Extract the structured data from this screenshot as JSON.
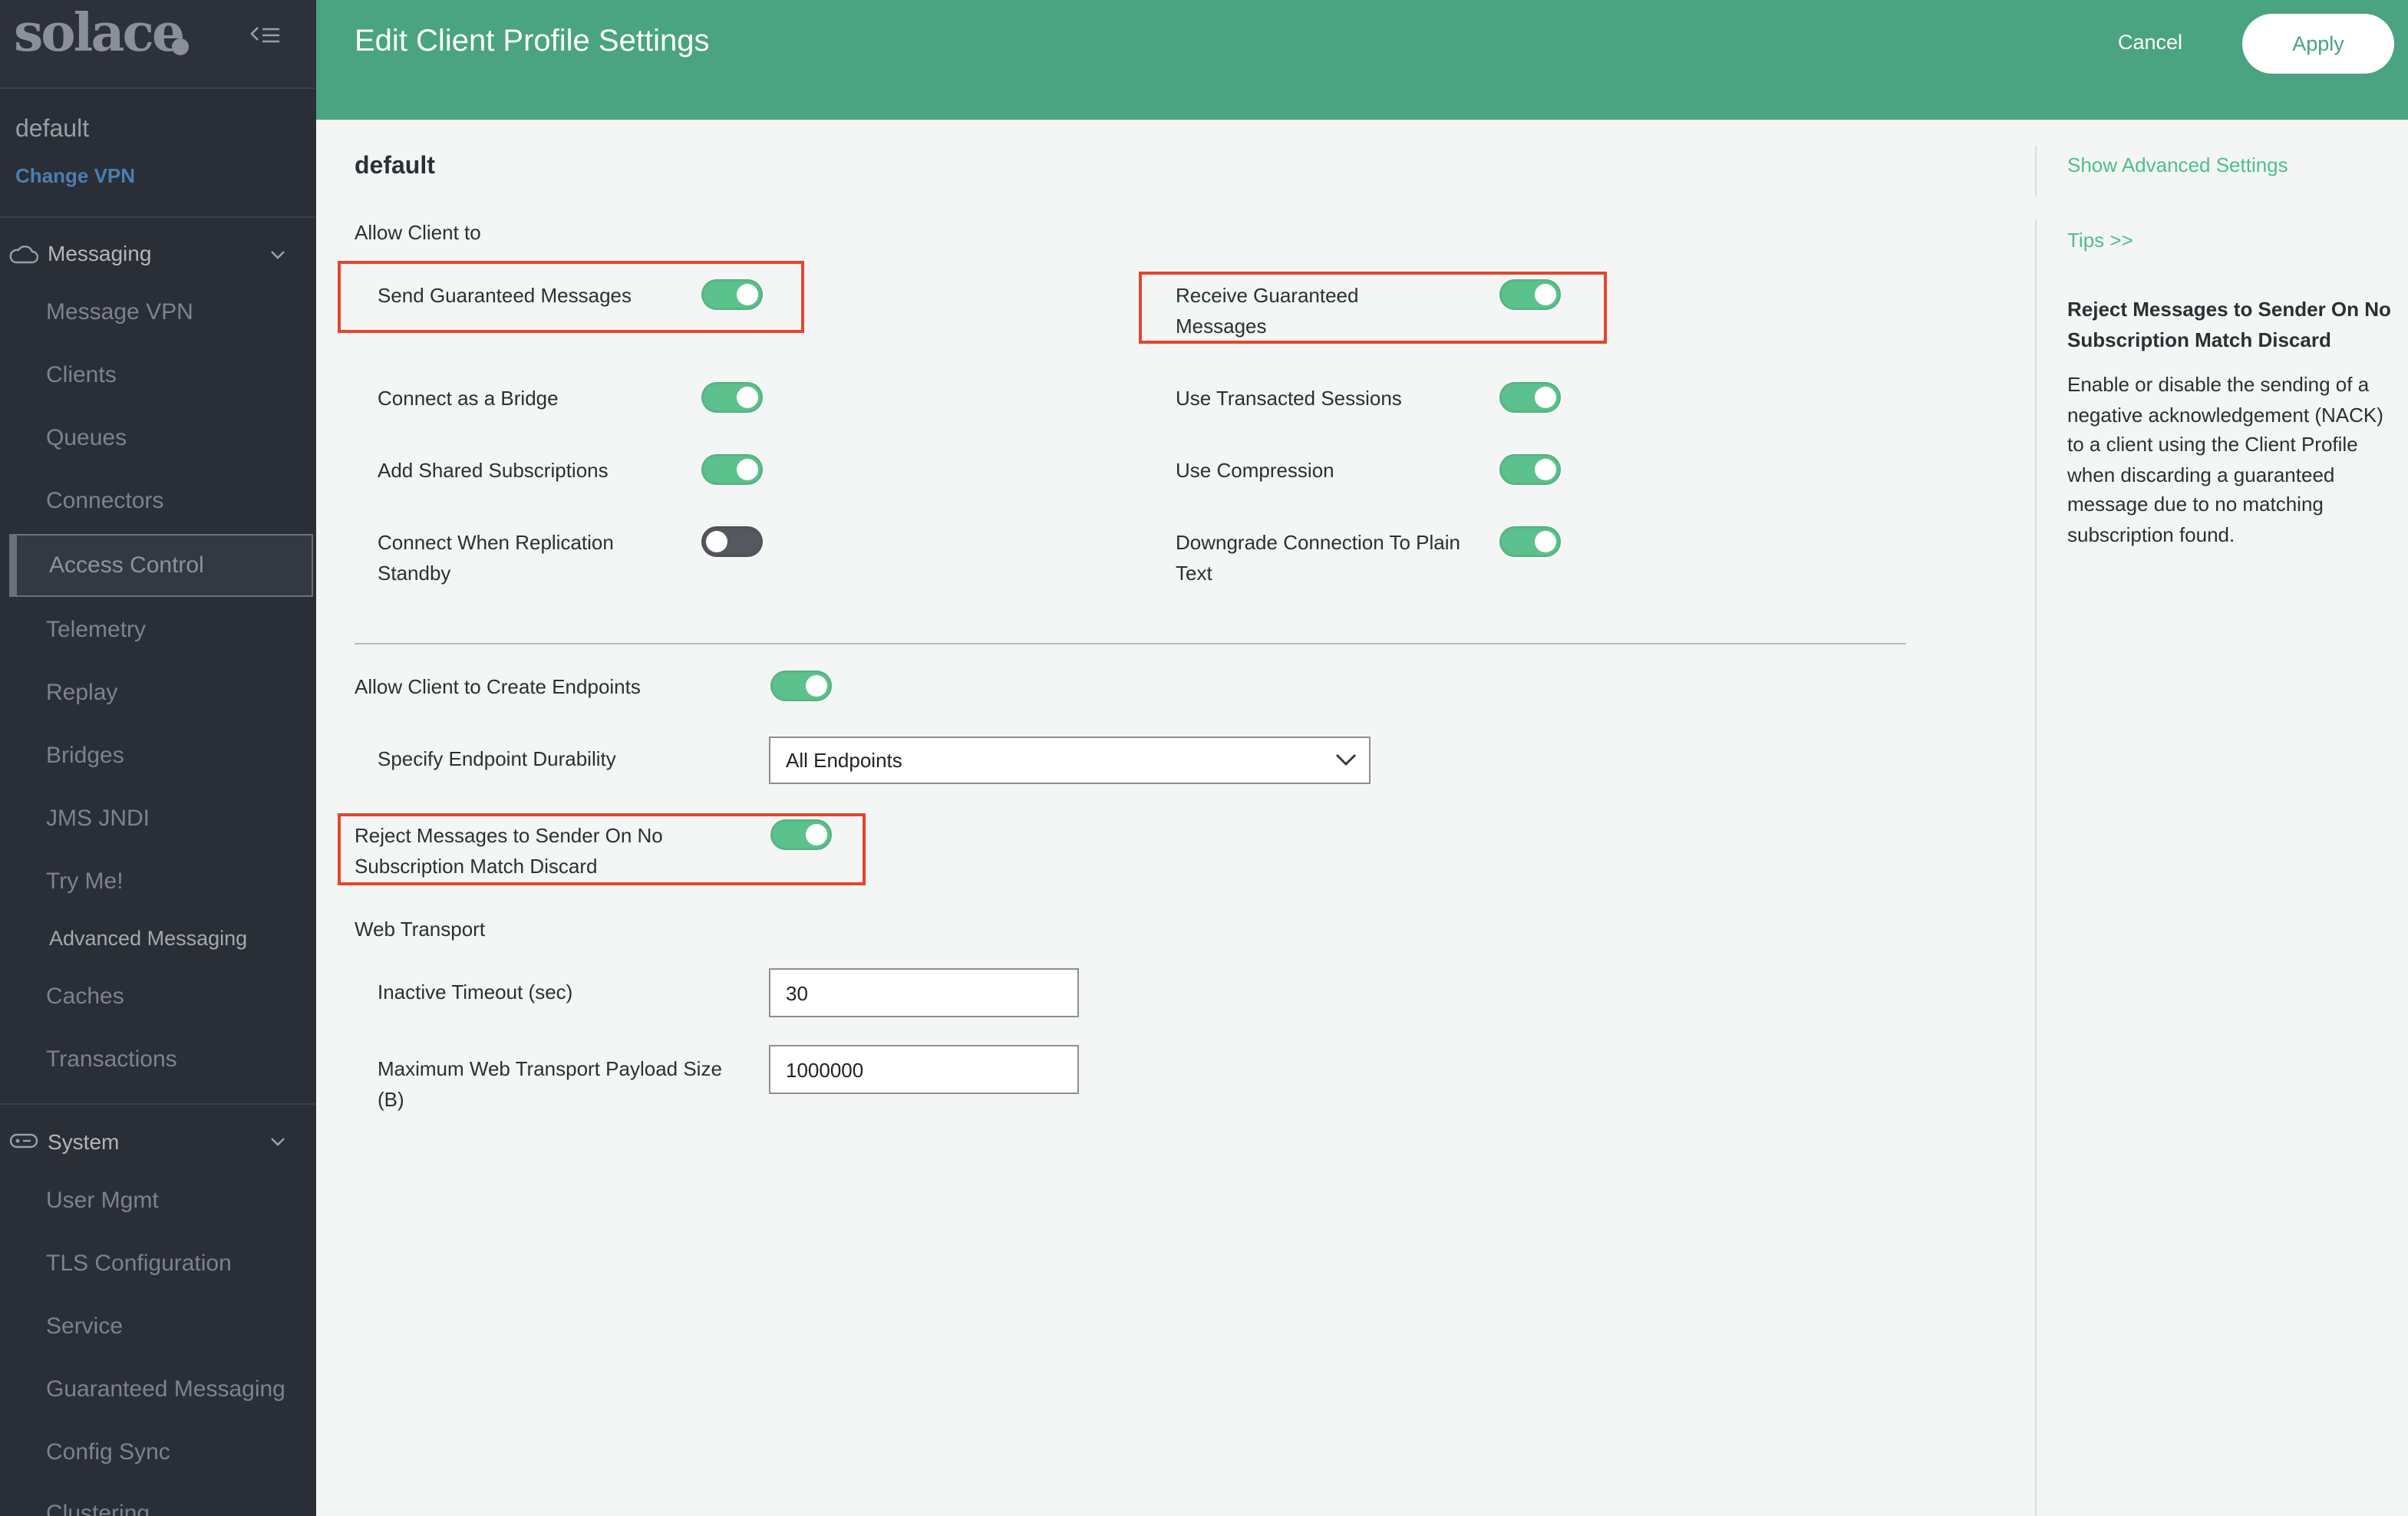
{
  "sidebar": {
    "logo": "solace",
    "vpn_name": "default",
    "change_vpn": "Change VPN",
    "groups": [
      {
        "label": "Messaging",
        "icon": "cloud-icon",
        "items": [
          "Message VPN",
          "Clients",
          "Queues",
          "Connectors",
          "Access Control",
          "Telemetry",
          "Replay",
          "Bridges",
          "JMS JNDI",
          "Try Me!",
          "Advanced Messaging",
          "Caches",
          "Transactions"
        ]
      },
      {
        "label": "System",
        "icon": "system-icon",
        "items": [
          "User Mgmt",
          "TLS Configuration",
          "Service",
          "Guaranteed Messaging",
          "Config Sync",
          "Clustering"
        ]
      }
    ],
    "active_item": "Access Control"
  },
  "header": {
    "title": "Edit Client Profile Settings",
    "cancel": "Cancel",
    "apply": "Apply",
    "color": "#4aa381"
  },
  "form": {
    "profile_name": "default",
    "allow_heading": "Allow Client to",
    "toggles_left": [
      {
        "label": "Send Guaranteed Messages",
        "on": true
      },
      {
        "label": "Connect as a Bridge",
        "on": true
      },
      {
        "label": "Add Shared Subscriptions",
        "on": true
      },
      {
        "label": "Connect When Replication Standby",
        "on": false
      }
    ],
    "toggles_right": [
      {
        "label": "Receive Guaranteed Messages",
        "on": true
      },
      {
        "label": "Use Transacted Sessions",
        "on": true
      },
      {
        "label": "Use Compression",
        "on": true
      },
      {
        "label": "Downgrade Connection To Plain Text",
        "on": true
      }
    ],
    "create_endpoints": {
      "label": "Allow Client to Create Endpoints",
      "on": true
    },
    "durability": {
      "label": "Specify Endpoint Durability",
      "value": "All Endpoints"
    },
    "reject": {
      "label": "Reject Messages to Sender On No Subscription Match Discard",
      "on": true
    },
    "web_transport": "Web Transport",
    "inactive_timeout": {
      "label": "Inactive Timeout (sec)",
      "value": "30"
    },
    "max_payload": {
      "label": "Maximum Web Transport Payload Size (B)",
      "value": "1000000"
    }
  },
  "tips": {
    "show_advanced": "Show Advanced Settings",
    "tips_link": "Tips >>",
    "heading": "Reject Messages to Sender On No Subscription Match Discard",
    "body": "Enable or disable the sending of a negative acknowledgement (NACK) to a client using the Client Profile when discarding a guaranteed message due to no matching subscription found."
  },
  "colors": {
    "toggle_on": "#5cc28d",
    "toggle_off": "#55585e",
    "highlight": "#e8432b",
    "link": "#4cc08a"
  }
}
